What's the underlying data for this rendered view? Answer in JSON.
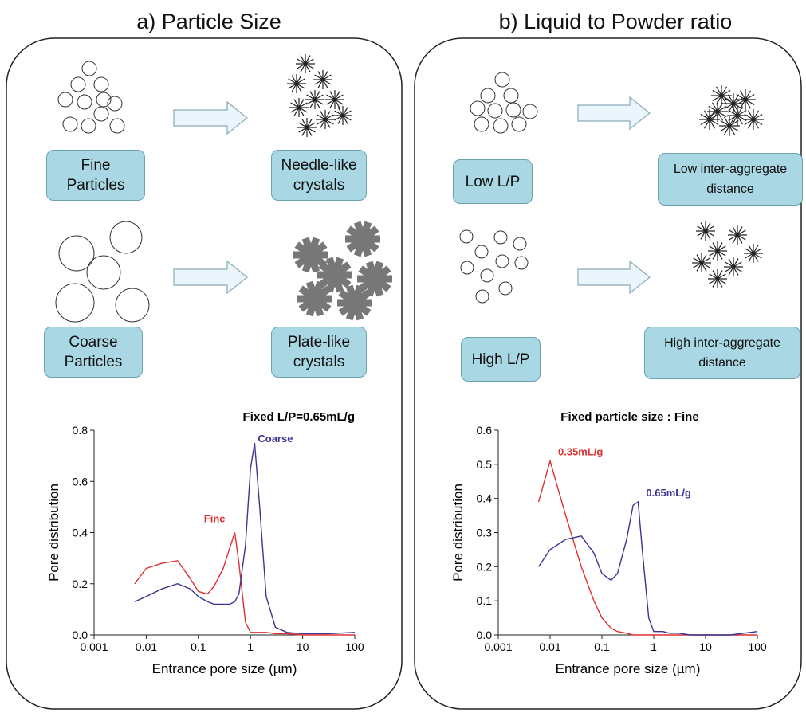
{
  "panels": [
    {
      "title": "a) Particle Size",
      "labels": [
        "Fine Particles",
        "Needle-like crystals",
        "Coarse Particles",
        "Plate-like crystals"
      ]
    },
    {
      "title": "b) Liquid to Powder ratio",
      "labels": [
        "Low L/P",
        "Low inter-aggregate distance",
        "High L/P",
        "High inter-aggregate distance"
      ]
    }
  ],
  "chart_data": [
    {
      "type": "line",
      "title": "Fixed L/P=0.65mL/g",
      "xlabel": "Entrance pore size (µm)",
      "ylabel": "Pore distribution",
      "xscale": "log",
      "xlim": [
        0.001,
        100
      ],
      "xticks": [
        0.001,
        0.01,
        0.1,
        1,
        10,
        100
      ],
      "ylim": [
        0,
        0.8
      ],
      "yticks": [
        {
          "value": 0,
          "label": "0.0"
        },
        0.2,
        0.4,
        0.6,
        0.8
      ],
      "x": [
        0.006,
        0.01,
        0.02,
        0.04,
        0.07,
        0.1,
        0.15,
        0.2,
        0.3,
        0.4,
        0.5,
        0.6,
        0.8,
        1,
        1.2,
        1.5,
        2,
        3,
        5,
        10,
        30,
        100
      ],
      "series": [
        {
          "name": "Fine",
          "color": "#e03030",
          "values": [
            0.2,
            0.26,
            0.28,
            0.29,
            0.22,
            0.17,
            0.16,
            0.19,
            0.26,
            0.34,
            0.4,
            0.28,
            0.05,
            0.01,
            0.01,
            0.01,
            0.01,
            0.005,
            0.005,
            0,
            0,
            0
          ]
        },
        {
          "name": "Coarse",
          "color": "#3a3590",
          "values": [
            0.13,
            0.15,
            0.18,
            0.2,
            0.18,
            0.15,
            0.13,
            0.12,
            0.12,
            0.12,
            0.13,
            0.16,
            0.35,
            0.65,
            0.75,
            0.5,
            0.15,
            0.03,
            0.01,
            0.005,
            0.005,
            0.01
          ]
        }
      ]
    },
    {
      "type": "line",
      "title": "Fixed particle size : Fine",
      "xlabel": "Entrance pore size (µm)",
      "ylabel": "Pore distribution",
      "xscale": "log",
      "xlim": [
        0.001,
        100
      ],
      "xticks": [
        0.001,
        0.01,
        0.1,
        1,
        10,
        100
      ],
      "ylim": [
        0,
        0.6
      ],
      "yticks": [
        {
          "value": 0,
          "label": "0.0"
        },
        0.1,
        0.2,
        0.3,
        0.4,
        0.5,
        0.6
      ],
      "x": [
        0.006,
        0.01,
        0.02,
        0.04,
        0.07,
        0.1,
        0.15,
        0.2,
        0.3,
        0.4,
        0.5,
        0.6,
        0.8,
        1,
        1.2,
        1.5,
        2,
        3,
        5,
        10,
        30,
        100
      ],
      "series": [
        {
          "name": "0.35mL/g",
          "color": "#e03030",
          "values": [
            0.39,
            0.51,
            0.35,
            0.2,
            0.1,
            0.05,
            0.02,
            0.01,
            0.005,
            0,
            0,
            0,
            0,
            0,
            0,
            0,
            0,
            0,
            0,
            0,
            0,
            0
          ]
        },
        {
          "name": "0.65mL/g",
          "color": "#3a3590",
          "values": [
            0.2,
            0.25,
            0.28,
            0.29,
            0.24,
            0.18,
            0.16,
            0.18,
            0.28,
            0.38,
            0.39,
            0.25,
            0.05,
            0.01,
            0.01,
            0.01,
            0.005,
            0.005,
            0,
            0,
            0,
            0.01
          ]
        }
      ]
    }
  ]
}
